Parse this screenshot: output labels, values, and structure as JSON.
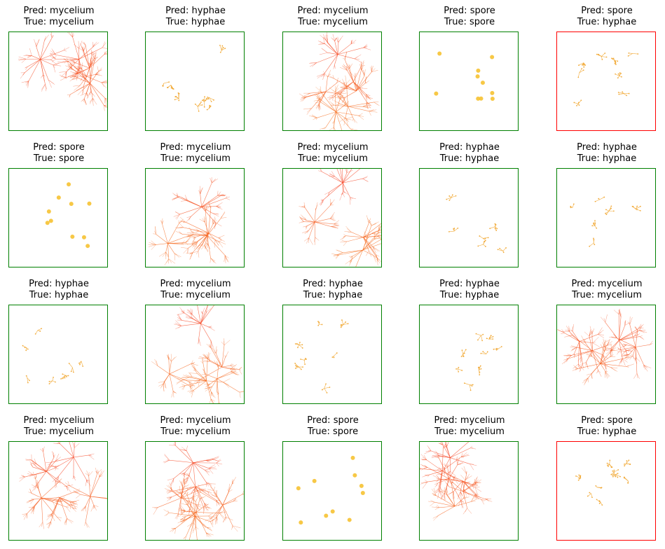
{
  "figure": {
    "pred_prefix": "Pred: ",
    "true_prefix": "True: ",
    "colors": {
      "correct_border": "#008000",
      "wrong_border": "#ff0000",
      "mycelium_top": "#f5331c",
      "mycelium_bottom": "#f57a1c",
      "hyphae": "#f0a020",
      "spore": "#f6c232"
    },
    "panels": [
      {
        "pred": "mycelium",
        "true": "mycelium",
        "correct": true
      },
      {
        "pred": "hyphae",
        "true": "hyphae",
        "correct": true
      },
      {
        "pred": "mycelium",
        "true": "mycelium",
        "correct": true
      },
      {
        "pred": "spore",
        "true": "spore",
        "correct": true
      },
      {
        "pred": "spore",
        "true": "hyphae",
        "correct": false
      },
      {
        "pred": "spore",
        "true": "spore",
        "correct": true
      },
      {
        "pred": "mycelium",
        "true": "mycelium",
        "correct": true
      },
      {
        "pred": "mycelium",
        "true": "mycelium",
        "correct": true
      },
      {
        "pred": "hyphae",
        "true": "hyphae",
        "correct": true
      },
      {
        "pred": "hyphae",
        "true": "hyphae",
        "correct": true
      },
      {
        "pred": "hyphae",
        "true": "hyphae",
        "correct": true
      },
      {
        "pred": "mycelium",
        "true": "mycelium",
        "correct": true
      },
      {
        "pred": "hyphae",
        "true": "hyphae",
        "correct": true
      },
      {
        "pred": "hyphae",
        "true": "hyphae",
        "correct": true
      },
      {
        "pred": "mycelium",
        "true": "mycelium",
        "correct": true
      },
      {
        "pred": "mycelium",
        "true": "mycelium",
        "correct": true
      },
      {
        "pred": "mycelium",
        "true": "mycelium",
        "correct": true
      },
      {
        "pred": "spore",
        "true": "spore",
        "correct": true
      },
      {
        "pred": "mycelium",
        "true": "mycelium",
        "correct": true
      },
      {
        "pred": "spore",
        "true": "hyphae",
        "correct": false
      }
    ]
  }
}
